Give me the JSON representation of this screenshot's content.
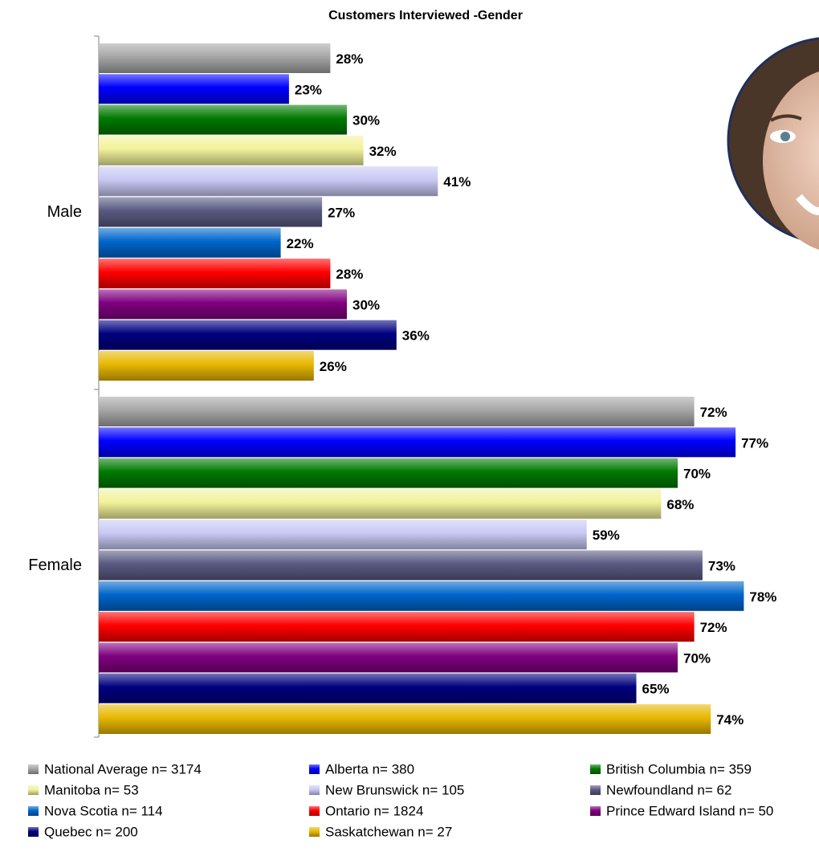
{
  "chart_data": {
    "type": "bar",
    "orientation": "horizontal",
    "title": "Customers Interviewed -Gender",
    "categories": [
      "Male",
      "Female"
    ],
    "series": [
      {
        "name": "National Average n= 3174",
        "color": "#a6a6a6",
        "values": [
          28,
          72
        ],
        "value_labels": [
          "28%",
          "72%"
        ]
      },
      {
        "name": "Alberta n= 380",
        "color": "#0000ff",
        "values": [
          23,
          77
        ],
        "value_labels": [
          "23%",
          "77%"
        ]
      },
      {
        "name": "British Columbia n= 359",
        "color": "#007a00",
        "values": [
          30,
          70
        ],
        "value_labels": [
          "30%",
          "70%"
        ]
      },
      {
        "name": "Manitoba n= 53",
        "color": "#f2f29a",
        "values": [
          32,
          68
        ],
        "value_labels": [
          "32%",
          "68%"
        ]
      },
      {
        "name": "New Brunswick n= 105",
        "color": "#c8c8f4",
        "values": [
          41,
          59
        ],
        "value_labels": [
          "41%",
          "59%"
        ]
      },
      {
        "name": "Newfoundland n= 62",
        "color": "#5a5a82",
        "values": [
          27,
          73
        ],
        "value_labels": [
          "27%",
          "73%"
        ]
      },
      {
        "name": "Nova Scotia n= 114",
        "color": "#0066cc",
        "values": [
          22,
          78
        ],
        "value_labels": [
          "22%",
          "78%"
        ]
      },
      {
        "name": "Ontario n= 1824",
        "color": "#ff0000",
        "values": [
          28,
          72
        ],
        "value_labels": [
          "28%",
          "72%"
        ]
      },
      {
        "name": "Prince Edward Island n= 50",
        "color": "#800080",
        "values": [
          30,
          70
        ],
        "value_labels": [
          "30%",
          "70%"
        ]
      },
      {
        "name": "Quebec n= 200",
        "color": "#000080",
        "values": [
          36,
          65
        ],
        "value_labels": [
          "36%",
          "65%"
        ]
      },
      {
        "name": "Saskatchewan n= 27",
        "color": "#e8b800",
        "values": [
          26,
          74
        ],
        "value_labels": [
          "26%",
          "74%"
        ]
      }
    ],
    "legend": "bottom"
  }
}
